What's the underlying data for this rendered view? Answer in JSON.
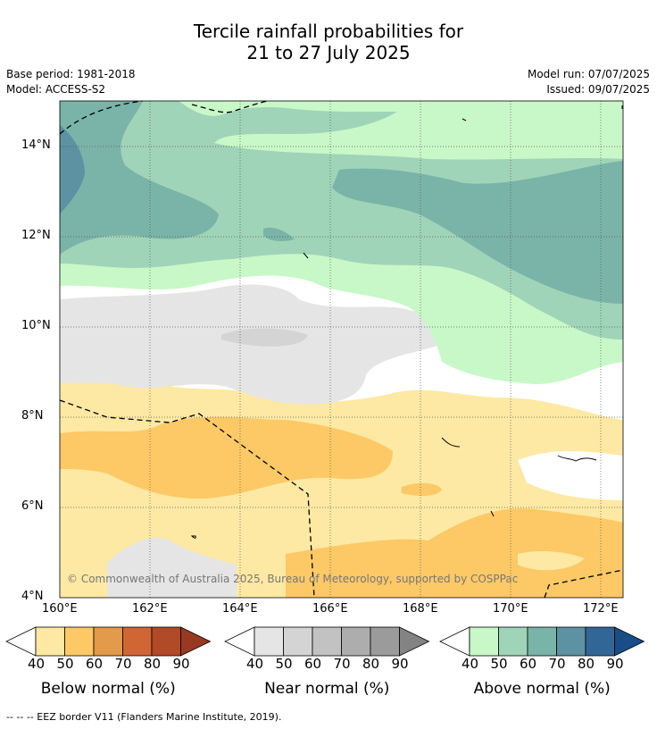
{
  "title_line1": "Tercile rainfall probabilities for",
  "title_line2": "21 to 27 July 2025",
  "base_period": "Base period: 1981-2018",
  "model": "Model: ACCESS-S2",
  "model_run": "Model run: 07/07/2025",
  "issued": "Issued: 09/07/2025",
  "copyright": "© Commonwealth of Australia 2025, Bureau of Meteorology, supported by COSPPac",
  "footer": "--  --  -- EEZ border V11 (Flanders Marine Institute, 2019).",
  "lat_ticks": [
    "14°N",
    "12°N",
    "10°N",
    "8°N",
    "6°N",
    "4°N"
  ],
  "lon_ticks": [
    "160°E",
    "162°E",
    "164°E",
    "166°E",
    "168°E",
    "170°E",
    "172°E"
  ],
  "colorbars": [
    {
      "title": "Below normal (%)",
      "labels": [
        "40",
        "50",
        "60",
        "70",
        "80",
        "90"
      ],
      "colors": [
        "#fde9a3",
        "#fcc966",
        "#e39a4b",
        "#cf6634",
        "#b04a27",
        "#983a21"
      ]
    },
    {
      "title": "Near normal (%)",
      "labels": [
        "40",
        "50",
        "60",
        "70",
        "80",
        "90"
      ],
      "colors": [
        "#e5e5e5",
        "#d4d4d4",
        "#c2c2c2",
        "#adadad",
        "#9b9b9b",
        "#838383"
      ]
    },
    {
      "title": "Above normal (%)",
      "labels": [
        "40",
        "50",
        "60",
        "70",
        "80",
        "90"
      ],
      "colors": [
        "#c8f8c8",
        "#a0d4b8",
        "#7ab4a8",
        "#5c92a2",
        "#326697",
        "#194d88"
      ]
    }
  ]
}
